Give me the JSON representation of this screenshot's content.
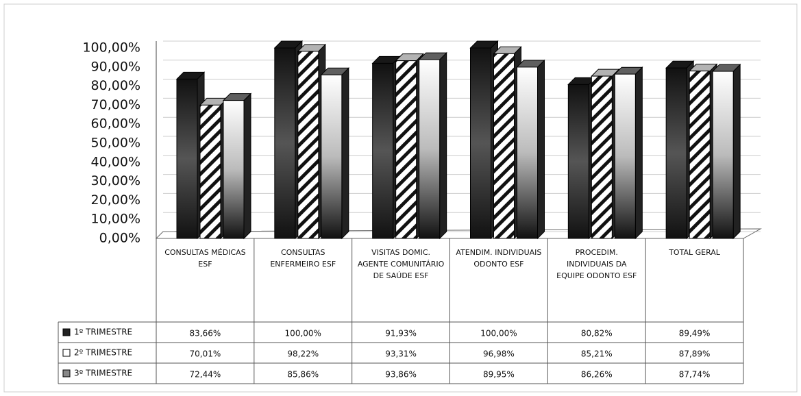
{
  "chart_data": {
    "type": "bar",
    "categories": [
      "CONSULTAS MÉDICAS ESF",
      "CONSULTAS ENFERMEIRO ESF",
      "VISITAS DOMIC. AGENTE COMUNITÁRIO DE SAÚDE ESF",
      "ATENDIM. INDIVIDUAIS ODONTO ESF",
      "PROCEDIM. INDIVIDUAIS DA EQUIPE ODONTO ESF",
      "TOTAL GERAL"
    ],
    "series": [
      {
        "name": "1º TRIMESTRE",
        "color": "#222222",
        "values": [
          83.66,
          100.0,
          91.93,
          100.0,
          80.82,
          89.49
        ],
        "value_labels": [
          "83,66%",
          "100,00%",
          "91,93%",
          "100,00%",
          "80,82%",
          "89,49%"
        ]
      },
      {
        "name": "2º TRIMESTRE",
        "color": "#ffffff",
        "values": [
          70.01,
          98.22,
          93.31,
          96.98,
          85.21,
          87.89
        ],
        "value_labels": [
          "70,01%",
          "98,22%",
          "93,31%",
          "96,98%",
          "85,21%",
          "87,89%"
        ]
      },
      {
        "name": "3º TRIMESTRE",
        "color": "#888888",
        "values": [
          72.44,
          85.86,
          93.86,
          89.95,
          86.26,
          87.74
        ],
        "value_labels": [
          "72,44%",
          "85,86%",
          "93,86%",
          "89,95%",
          "86,26%",
          "87,74%"
        ]
      }
    ],
    "ylim": [
      0,
      100
    ],
    "yticks": [
      {
        "value": 0,
        "label": "0,00%"
      },
      {
        "value": 10,
        "label": "10,00%"
      },
      {
        "value": 20,
        "label": "20,00%"
      },
      {
        "value": 30,
        "label": "30,00%"
      },
      {
        "value": 40,
        "label": "40,00%"
      },
      {
        "value": 50,
        "label": "50,00%"
      },
      {
        "value": 60,
        "label": "60,00%"
      },
      {
        "value": 70,
        "label": "70,00%"
      },
      {
        "value": 80,
        "label": "80,00%"
      },
      {
        "value": 90,
        "label": "90,00%"
      },
      {
        "value": 100,
        "label": "100,00%"
      }
    ],
    "grid": true
  }
}
